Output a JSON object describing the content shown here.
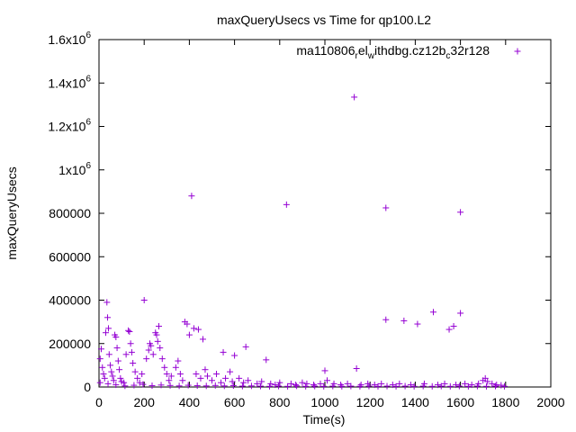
{
  "chart_data": {
    "type": "scatter",
    "title": "maxQueryUsecs vs Time for qp100.L2",
    "xlabel": "Time(s)",
    "ylabel": "maxQueryUsecs",
    "xlim": [
      0,
      2000
    ],
    "ylim": [
      0,
      1600000
    ],
    "x_ticks": [
      0,
      200,
      400,
      600,
      800,
      1000,
      1200,
      1400,
      1600,
      1800,
      2000
    ],
    "x_tick_labels": [
      "0",
      "200",
      "400",
      "600",
      "800",
      "1000",
      "1200",
      "1400",
      "1600",
      "1800",
      "2000"
    ],
    "y_ticks": [
      0,
      200000,
      400000,
      600000,
      800000,
      1000000,
      1200000,
      1400000,
      1600000
    ],
    "y_tick_labels": [
      {
        "base": "0",
        "sup": ""
      },
      {
        "base": "200000",
        "sup": ""
      },
      {
        "base": "400000",
        "sup": ""
      },
      {
        "base": "600000",
        "sup": ""
      },
      {
        "base": "800000",
        "sup": ""
      },
      {
        "base": "1x10",
        "sup": "6"
      },
      {
        "base": "1.2x10",
        "sup": "6"
      },
      {
        "base": "1.4x10",
        "sup": "6"
      },
      {
        "base": "1.6x10",
        "sup": "6"
      }
    ],
    "grid": false,
    "legend_position": "top-right",
    "series": [
      {
        "name": "ma110806_rel_withdbg.cz12b_c32r128",
        "legend_parts": [
          {
            "text": "ma110806",
            "style": "normal"
          },
          {
            "text": "r",
            "style": "sub"
          },
          {
            "text": "el",
            "style": "normal"
          },
          {
            "text": "w",
            "style": "sub"
          },
          {
            "text": "ithdbg.cz12b",
            "style": "normal"
          },
          {
            "text": "c",
            "style": "sub"
          },
          {
            "text": "32r128",
            "style": "normal"
          }
        ],
        "color": "#9400d3",
        "marker": "plus",
        "points": [
          [
            410,
            880000
          ],
          [
            830,
            840000
          ],
          [
            1130,
            1335000
          ],
          [
            1270,
            825000
          ],
          [
            1600,
            805000
          ],
          [
            35,
            390000
          ],
          [
            200,
            400000
          ],
          [
            1270,
            310000
          ],
          [
            1350,
            305000
          ],
          [
            1410,
            290000
          ],
          [
            1480,
            345000
          ],
          [
            1550,
            265000
          ],
          [
            1570,
            280000
          ],
          [
            1600,
            340000
          ],
          [
            380,
            300000
          ],
          [
            420,
            270000
          ],
          [
            440,
            265000
          ],
          [
            460,
            220000
          ],
          [
            650,
            185000
          ],
          [
            550,
            160000
          ],
          [
            600,
            145000
          ],
          [
            740,
            125000
          ],
          [
            1000,
            75000
          ],
          [
            1140,
            85000
          ],
          [
            5,
            130000
          ],
          [
            10,
            175000
          ],
          [
            15,
            90000
          ],
          [
            20,
            60000
          ],
          [
            25,
            40000
          ],
          [
            30,
            250000
          ],
          [
            38,
            320000
          ],
          [
            42,
            270000
          ],
          [
            45,
            150000
          ],
          [
            50,
            100000
          ],
          [
            55,
            70000
          ],
          [
            60,
            50000
          ],
          [
            65,
            30000
          ],
          [
            70,
            240000
          ],
          [
            75,
            230000
          ],
          [
            80,
            180000
          ],
          [
            85,
            120000
          ],
          [
            90,
            80000
          ],
          [
            95,
            40000
          ],
          [
            100,
            25000
          ],
          [
            110,
            20000
          ],
          [
            120,
            150000
          ],
          [
            130,
            260000
          ],
          [
            135,
            255000
          ],
          [
            140,
            200000
          ],
          [
            145,
            160000
          ],
          [
            150,
            110000
          ],
          [
            160,
            70000
          ],
          [
            170,
            40000
          ],
          [
            180,
            20000
          ],
          [
            190,
            60000
          ],
          [
            210,
            130000
          ],
          [
            220,
            170000
          ],
          [
            225,
            200000
          ],
          [
            230,
            190000
          ],
          [
            240,
            150000
          ],
          [
            250,
            250000
          ],
          [
            255,
            240000
          ],
          [
            260,
            210000
          ],
          [
            265,
            280000
          ],
          [
            270,
            180000
          ],
          [
            280,
            130000
          ],
          [
            290,
            90000
          ],
          [
            300,
            60000
          ],
          [
            310,
            30000
          ],
          [
            320,
            50000
          ],
          [
            340,
            90000
          ],
          [
            350,
            120000
          ],
          [
            360,
            60000
          ],
          [
            370,
            30000
          ],
          [
            390,
            290000
          ],
          [
            400,
            240000
          ],
          [
            430,
            60000
          ],
          [
            450,
            40000
          ],
          [
            470,
            80000
          ],
          [
            480,
            50000
          ],
          [
            500,
            30000
          ],
          [
            520,
            60000
          ],
          [
            540,
            20000
          ],
          [
            560,
            40000
          ],
          [
            580,
            70000
          ],
          [
            590,
            25000
          ],
          [
            620,
            40000
          ],
          [
            640,
            20000
          ],
          [
            660,
            30000
          ],
          [
            700,
            15000
          ],
          [
            720,
            25000
          ],
          [
            760,
            15000
          ],
          [
            780,
            10000
          ],
          [
            800,
            20000
          ],
          [
            850,
            15000
          ],
          [
            870,
            10000
          ],
          [
            900,
            20000
          ],
          [
            920,
            15000
          ],
          [
            950,
            10000
          ],
          [
            980,
            15000
          ],
          [
            1010,
            30000
          ],
          [
            1040,
            15000
          ],
          [
            1070,
            10000
          ],
          [
            1100,
            15000
          ],
          [
            1160,
            10000
          ],
          [
            1190,
            15000
          ],
          [
            1220,
            10000
          ],
          [
            1250,
            15000
          ],
          [
            1300,
            10000
          ],
          [
            1330,
            15000
          ],
          [
            1380,
            10000
          ],
          [
            1440,
            15000
          ],
          [
            1500,
            10000
          ],
          [
            1530,
            15000
          ],
          [
            1580,
            10000
          ],
          [
            1620,
            15000
          ],
          [
            1650,
            10000
          ],
          [
            1680,
            15000
          ],
          [
            1700,
            30000
          ],
          [
            1710,
            40000
          ],
          [
            1720,
            25000
          ],
          [
            1740,
            15000
          ],
          [
            1760,
            10000
          ],
          [
            1780,
            8000
          ],
          [
            5,
            20000
          ],
          [
            40,
            15000
          ],
          [
            75,
            10000
          ],
          [
            115,
            5000
          ],
          [
            155,
            8000
          ],
          [
            195,
            12000
          ],
          [
            235,
            6000
          ],
          [
            275,
            9000
          ],
          [
            315,
            7000
          ],
          [
            355,
            5000
          ],
          [
            395,
            8000
          ],
          [
            435,
            6000
          ],
          [
            475,
            5000
          ],
          [
            515,
            7000
          ],
          [
            555,
            5000
          ],
          [
            595,
            6000
          ],
          [
            635,
            4000
          ],
          [
            675,
            5000
          ],
          [
            715,
            4000
          ],
          [
            755,
            3000
          ],
          [
            795,
            4000
          ],
          [
            835,
            3000
          ],
          [
            875,
            5000
          ],
          [
            915,
            3000
          ],
          [
            955,
            4000
          ],
          [
            995,
            3000
          ],
          [
            1035,
            4000
          ],
          [
            1075,
            3000
          ],
          [
            1115,
            4000
          ],
          [
            1155,
            3000
          ],
          [
            1195,
            4000
          ],
          [
            1235,
            3000
          ],
          [
            1275,
            4000
          ],
          [
            1315,
            3000
          ],
          [
            1355,
            4000
          ],
          [
            1395,
            3000
          ],
          [
            1435,
            4000
          ],
          [
            1475,
            3000
          ],
          [
            1515,
            4000
          ],
          [
            1555,
            3000
          ],
          [
            1595,
            4000
          ],
          [
            1635,
            3000
          ],
          [
            1675,
            4000
          ],
          [
            1715,
            3000
          ],
          [
            1755,
            4000
          ],
          [
            1795,
            3000
          ]
        ]
      }
    ]
  }
}
